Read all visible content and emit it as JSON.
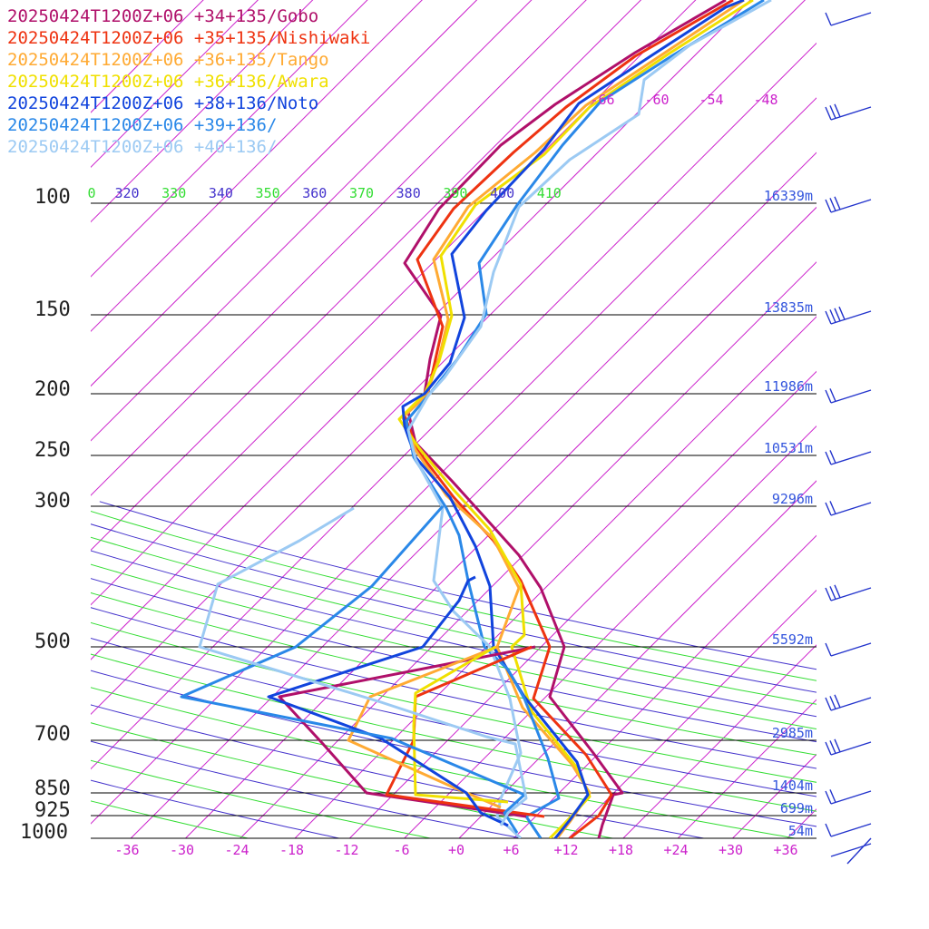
{
  "chart_data": {
    "type": "line",
    "subtype": "skew-t",
    "colors": {
      "isotherm": "#cc22cc",
      "theta_warm": "#33dd33",
      "theta_cool": "#4433cc",
      "pressure_line": "#000000",
      "pressure_label": "#222222",
      "height_label": "#3355dd",
      "wind_barb": "#2233cc"
    },
    "pressure_levels": [
      {
        "p": 100,
        "label": "100",
        "height": "16339m"
      },
      {
        "p": 150,
        "label": "150",
        "height": "13835m"
      },
      {
        "p": 200,
        "label": "200",
        "height": "11986m"
      },
      {
        "p": 250,
        "label": "250",
        "height": "10531m"
      },
      {
        "p": 300,
        "label": "300",
        "height": "9296m"
      },
      {
        "p": 500,
        "label": "500",
        "height": "5592m"
      },
      {
        "p": 700,
        "label": "700",
        "height": "2985m"
      },
      {
        "p": 850,
        "label": "850",
        "height": "1404m"
      },
      {
        "p": 925,
        "label": "925",
        "height": "699m"
      },
      {
        "p": 1000,
        "label": "1000",
        "height": "54m"
      }
    ],
    "temp_ticks": [
      "-36",
      "-30",
      "-24",
      "-18",
      "-12",
      "-6",
      "+0",
      "+6",
      "+12",
      "+18",
      "+24",
      "+30",
      "+36"
    ],
    "upper_isotherm_labels": [
      "-66",
      "-60",
      "-54",
      "-48"
    ],
    "theta_labels": [
      "0",
      "320",
      "330",
      "340",
      "350",
      "360",
      "370",
      "380",
      "390",
      "400",
      "410"
    ],
    "series": [
      {
        "name": "20250424T1200Z+06 +34+135/Gobo",
        "color": "#b0106a"
      },
      {
        "name": "20250424T1200Z+06 +35+135/Nishiwaki",
        "color": "#ee3311"
      },
      {
        "name": "20250424T1200Z+06 +36+135/Tango",
        "color": "#ffaa33"
      },
      {
        "name": "20250424T1200Z+06 +36+136/Awara",
        "color": "#f0e000"
      },
      {
        "name": "20250424T1200Z+06 +38+136/Noto",
        "color": "#1144dd"
      },
      {
        "name": "20250424T1200Z+06 +39+136/",
        "color": "#2a88e8"
      },
      {
        "name": "20250424T1200Z+06 +40+136/",
        "color": "#9ccaf3"
      }
    ]
  }
}
